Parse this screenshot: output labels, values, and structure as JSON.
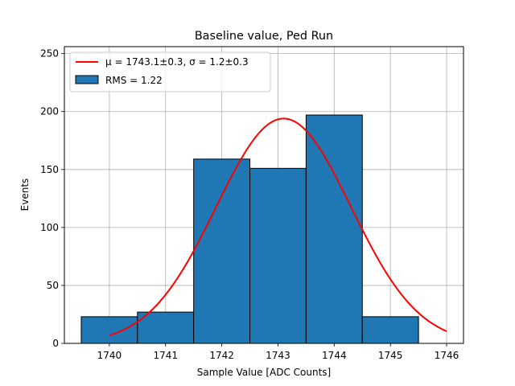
{
  "chart_data": {
    "type": "bar",
    "title": "Baseline value, Ped Run",
    "xlabel": "Sample Value [ADC Counts]",
    "ylabel": "Events",
    "xlim": [
      1739.2,
      1746.3
    ],
    "ylim": [
      0,
      256
    ],
    "grid": true,
    "legend_position": "top-left",
    "x_ticks": [
      1740,
      1741,
      1742,
      1743,
      1744,
      1745,
      1746
    ],
    "y_ticks": [
      0,
      50,
      100,
      150,
      200,
      250
    ],
    "bins": [
      {
        "low": 1739.5,
        "high": 1740.5,
        "value": 23
      },
      {
        "low": 1740.5,
        "high": 1741.5,
        "value": 27
      },
      {
        "low": 1741.5,
        "high": 1742.5,
        "value": 159
      },
      {
        "low": 1742.5,
        "high": 1743.5,
        "value": 151
      },
      {
        "low": 1743.5,
        "high": 1744.5,
        "value": 197
      },
      {
        "low": 1744.5,
        "high": 1745.5,
        "value": 23
      }
    ],
    "bar_color": "#1f77b4",
    "fit": {
      "type": "gaussian",
      "amplitude": 194,
      "mean": 1743.1,
      "sigma": 1.2,
      "x_range": [
        1740,
        1746
      ],
      "color": "#ff0000"
    },
    "legend": [
      {
        "label": "μ = 1743.1±0.3, σ = 1.2±0.3",
        "kind": "line",
        "color": "#ff0000"
      },
      {
        "label": "RMS = 1.22",
        "kind": "patch",
        "color": "#1f77b4"
      }
    ]
  }
}
